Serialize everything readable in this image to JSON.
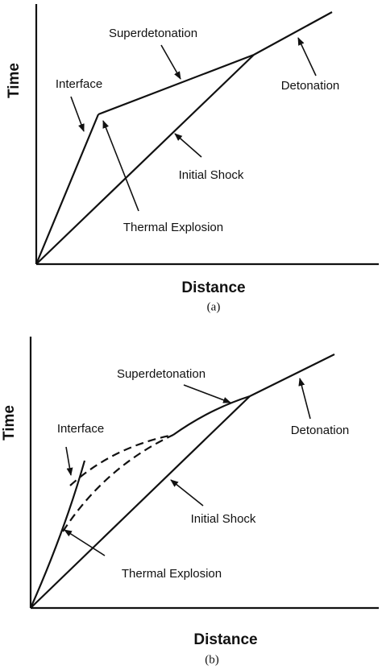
{
  "panels": [
    {
      "superdetonation": "Superdetonation",
      "interface": "Interface",
      "detonation": "Detonation",
      "initial_shock": "Initial Shock",
      "thermal_explosion": "Thermal Explosion",
      "y_axis": "Time",
      "x_axis": "Distance",
      "caption": "(a)"
    },
    {
      "superdetonation": "Superdetonation",
      "interface": "Interface",
      "detonation": "Detonation",
      "initial_shock": "Initial Shock",
      "thermal_explosion": "Thermal Explosion",
      "y_axis": "Time",
      "x_axis": "Distance",
      "caption": "(b)"
    }
  ]
}
